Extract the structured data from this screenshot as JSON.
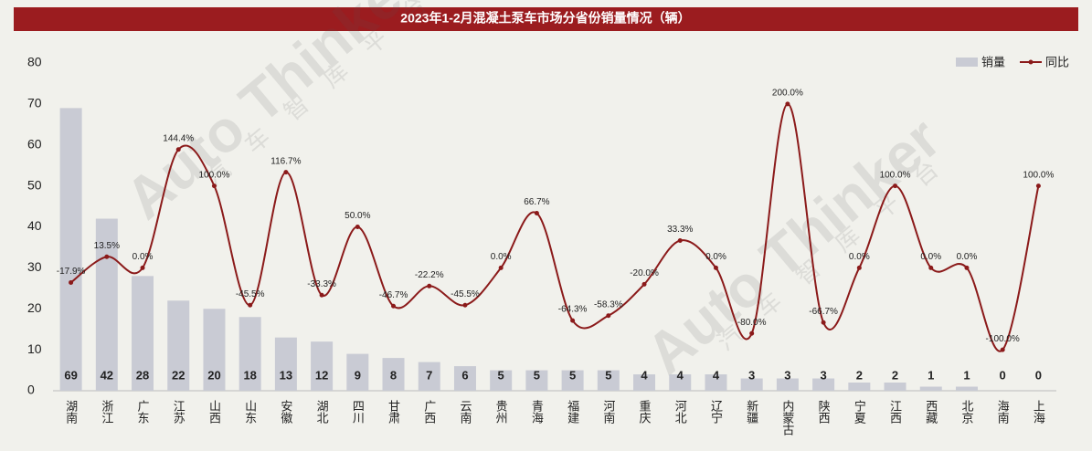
{
  "chart_data": {
    "type": "bar_line",
    "title": "2023年1-2月混凝土泵车市场分省份销量情况（辆）",
    "watermark": [
      "Auto Thinker",
      "汽车智库平台"
    ],
    "categories": [
      "湖南",
      "浙江",
      "广东",
      "江苏",
      "山西",
      "山东",
      "安徽",
      "湖北",
      "四川",
      "甘肃",
      "广西",
      "云南",
      "贵州",
      "青海",
      "福建",
      "河南",
      "重庆",
      "河北",
      "辽宁",
      "新疆",
      "内蒙古",
      "陕西",
      "宁夏",
      "江西",
      "西藏",
      "北京",
      "海南",
      "上海"
    ],
    "series": [
      {
        "name": "销量",
        "type": "bar",
        "color": "#c9cbd4",
        "values": [
          69,
          42,
          28,
          22,
          20,
          18,
          13,
          12,
          9,
          8,
          7,
          6,
          5,
          5,
          5,
          5,
          4,
          4,
          4,
          3,
          3,
          3,
          2,
          2,
          1,
          1,
          0,
          0
        ]
      },
      {
        "name": "同比",
        "type": "line",
        "axis": "y2",
        "color": "#8b1a1a",
        "values": [
          -17.9,
          13.5,
          0.0,
          144.4,
          100.0,
          -45.5,
          116.7,
          -33.3,
          50.0,
          -46.7,
          -22.2,
          -45.5,
          0.0,
          66.7,
          -64.3,
          -58.3,
          -20.0,
          33.3,
          0.0,
          -80.0,
          200.0,
          -66.7,
          0.0,
          100.0,
          0.0,
          0.0,
          -100.0,
          100.0
        ],
        "value_labels": [
          "-17.9%",
          "13.5%",
          "0.0%",
          "144.4%",
          "100.0%",
          "-45.5%",
          "116.7%",
          "-33.3%",
          "50.0%",
          "-46.7%",
          "-22.2%",
          "-45.5%",
          "0.0%",
          "66.7%",
          "-64.3%",
          "-58.3%",
          "-20.0%",
          "33.3%",
          "0.0%",
          "-80.0%",
          "200.0%",
          "-66.7%",
          "0.0%",
          "100.0%",
          "0.0%",
          "0.0%",
          "-100.0%",
          "100.0%"
        ]
      }
    ],
    "ylim": [
      0,
      80
    ],
    "yticks": [
      0,
      10,
      20,
      30,
      40,
      50,
      60,
      70,
      80
    ],
    "y2lim": [
      -150,
      250
    ],
    "legend": "top-right",
    "grid": false
  }
}
